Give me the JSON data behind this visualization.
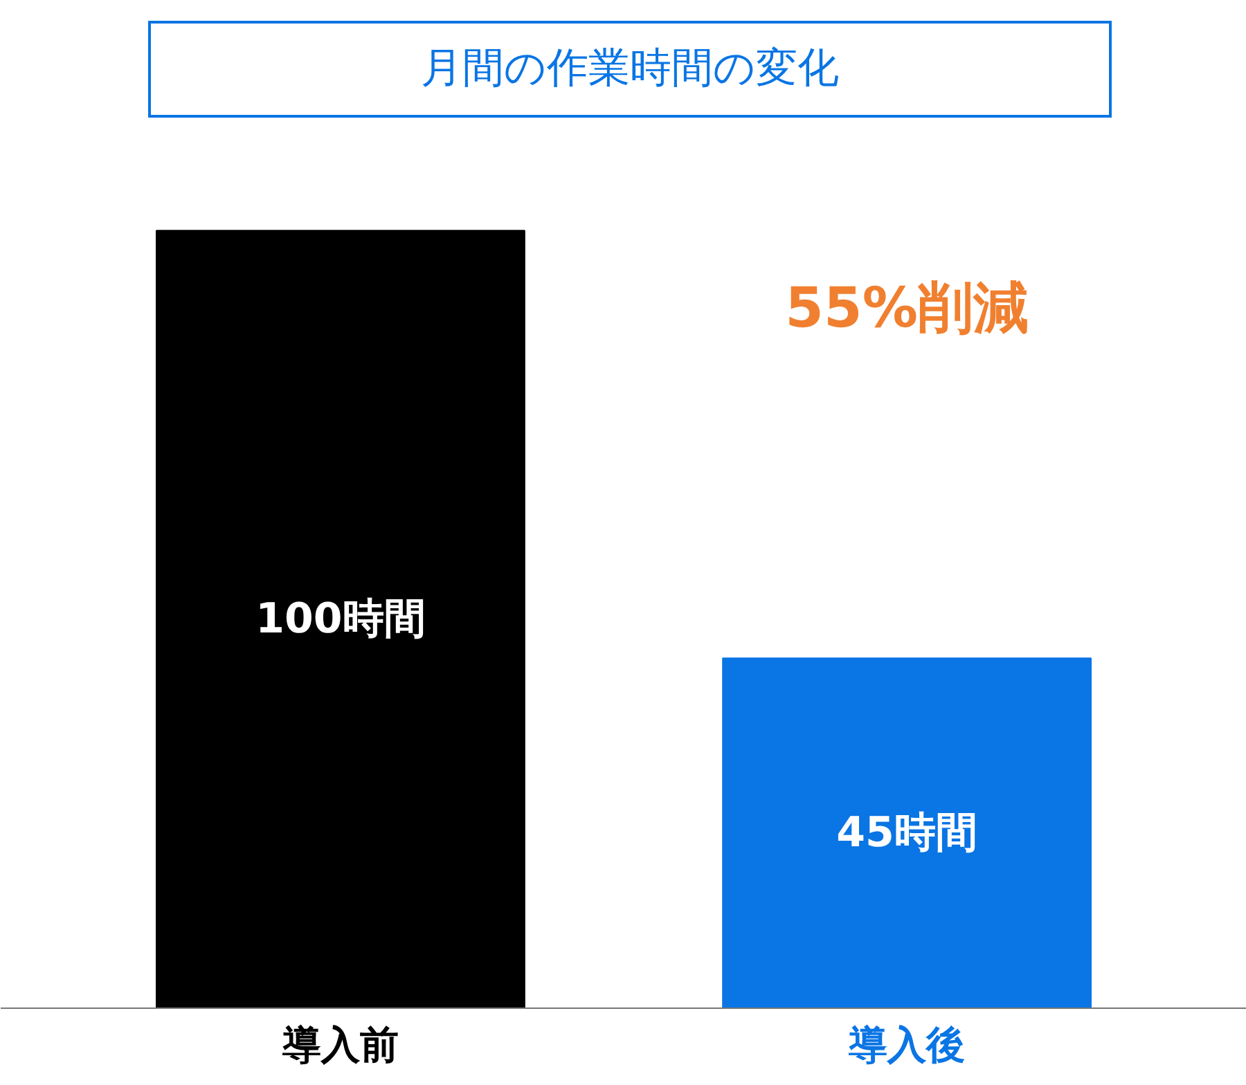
{
  "chart_data": {
    "type": "bar",
    "title": "月間の作業時間の変化",
    "categories": [
      "導入前",
      "導入後"
    ],
    "values": [
      100,
      45
    ],
    "colors": [
      "#000000",
      "#0a75e4"
    ],
    "value_labels": [
      "100時間",
      "45時間"
    ],
    "annotations": [
      "55%削減"
    ],
    "grid": false
  }
}
